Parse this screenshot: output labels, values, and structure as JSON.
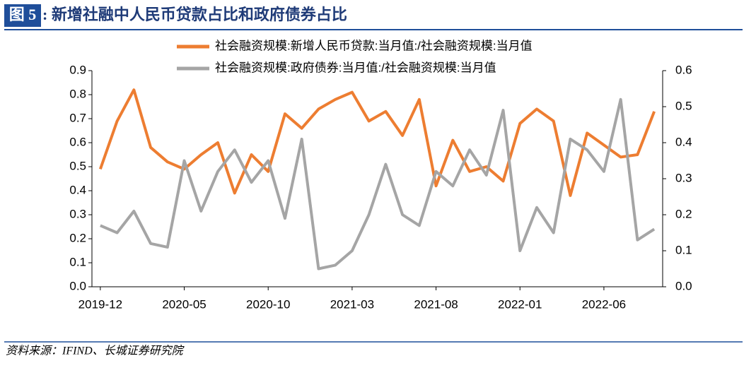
{
  "figure_label": "图 5",
  "chart_data": {
    "type": "line",
    "title": ": 新增社融中人民币贷款占比和政府债券占比",
    "source": "资料来源：IFIND、长城证券研究院",
    "categories": [
      "2019-12",
      null,
      null,
      null,
      null,
      "2020-05",
      null,
      null,
      null,
      null,
      "2020-10",
      null,
      null,
      null,
      null,
      "2021-03",
      null,
      null,
      null,
      null,
      "2021-08",
      null,
      null,
      null,
      null,
      "2022-01",
      null,
      null,
      null,
      null,
      "2022-06",
      null,
      null,
      null
    ],
    "series": [
      {
        "name": "社会融资规模:新增人民币贷款:当月值:/社会融资规模:当月值",
        "color": "#ed7d31",
        "axis": "y",
        "values": [
          0.49,
          0.69,
          0.82,
          0.58,
          0.52,
          0.49,
          0.55,
          0.6,
          0.39,
          0.55,
          0.48,
          0.72,
          0.66,
          0.74,
          0.78,
          0.81,
          0.69,
          0.73,
          0.63,
          0.78,
          0.42,
          0.61,
          0.48,
          0.5,
          0.44,
          0.68,
          0.74,
          0.69,
          0.38,
          0.64,
          0.59,
          0.54,
          0.55,
          0.73
        ]
      },
      {
        "name": "社会融资规模:政府债券:当月值:/社会融资规模:当月值",
        "color": "#a5a5a5",
        "axis": "y2",
        "values": [
          0.17,
          0.15,
          0.21,
          0.12,
          0.11,
          0.35,
          0.21,
          0.32,
          0.38,
          0.29,
          0.35,
          0.19,
          0.41,
          0.05,
          0.06,
          0.1,
          0.2,
          0.34,
          0.2,
          0.17,
          0.32,
          0.28,
          0.38,
          0.31,
          0.49,
          0.1,
          0.22,
          0.15,
          0.41,
          0.38,
          0.32,
          0.52,
          0.13,
          0.16
        ]
      }
    ],
    "ylim": [
      0,
      0.9
    ],
    "yticks": [
      {
        "value": 0,
        "label": "0.0"
      },
      0.1,
      0.2,
      0.3,
      0.4,
      0.5,
      0.6,
      0.7,
      0.8,
      0.9
    ],
    "y2lim": [
      0,
      0.6
    ],
    "y2ticks": [
      {
        "value": 0,
        "label": "0.0"
      },
      0.1,
      0.2,
      0.3,
      0.4,
      0.5,
      0.6
    ],
    "legend": "top"
  }
}
